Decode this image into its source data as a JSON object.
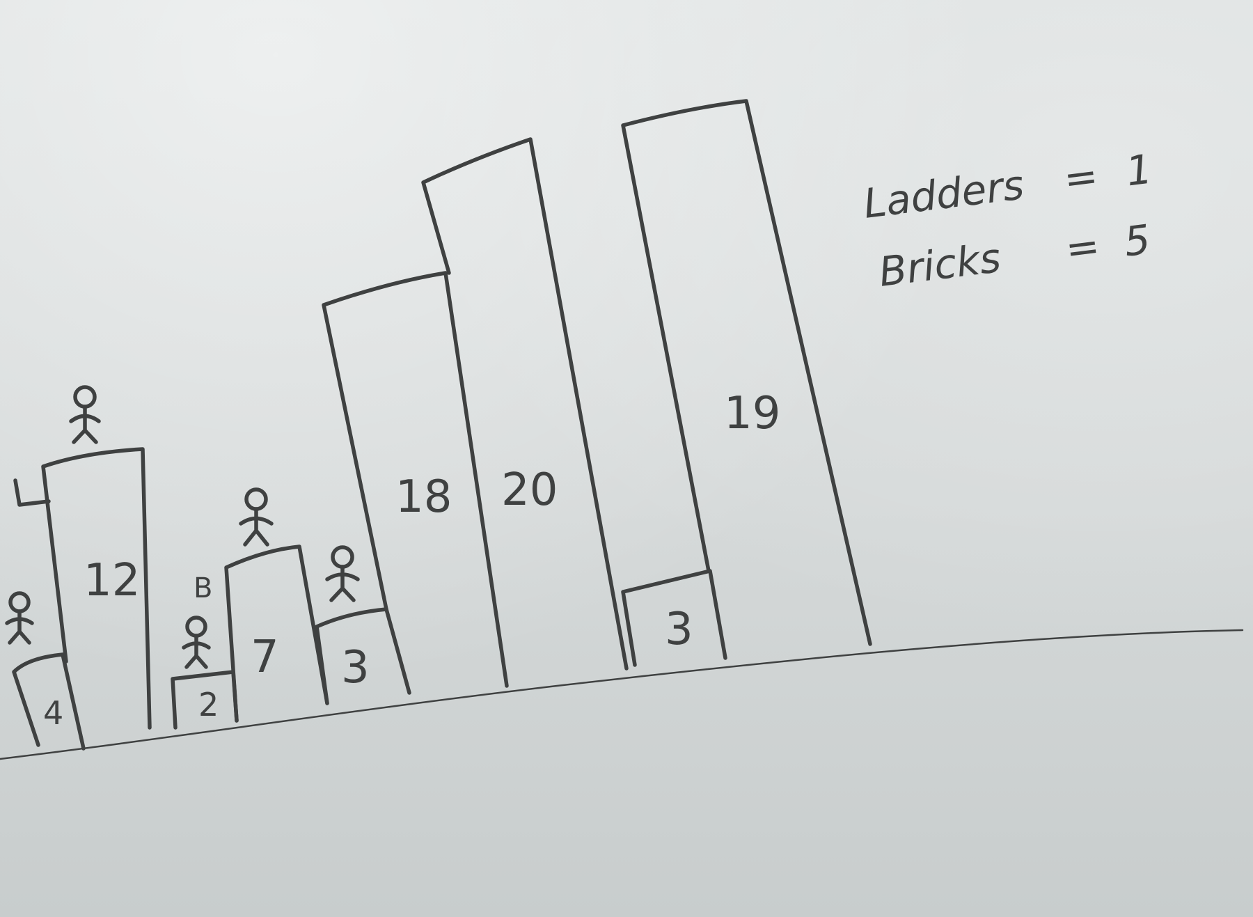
{
  "buildings": [
    {
      "id": "b1",
      "label": "4"
    },
    {
      "id": "b2",
      "label": "12"
    },
    {
      "id": "b3",
      "label": "2"
    },
    {
      "id": "b4",
      "label": "7"
    },
    {
      "id": "b5",
      "label": "3"
    },
    {
      "id": "b6",
      "label": "18"
    },
    {
      "id": "b7",
      "label": "20"
    },
    {
      "id": "b8",
      "label": "3"
    },
    {
      "id": "b9",
      "label": "19"
    }
  ],
  "legend": {
    "ladders_label": "Ladders",
    "ladders_value": "1",
    "bricks_label": "Bricks",
    "bricks_value": "5",
    "equals": "="
  },
  "bricks_marker": "B",
  "icons": [
    "stick-figure-icon",
    "ladder-icon",
    "brick-icon"
  ],
  "colors": {
    "marker": "#3f4141",
    "board": "#d8dcdc"
  }
}
